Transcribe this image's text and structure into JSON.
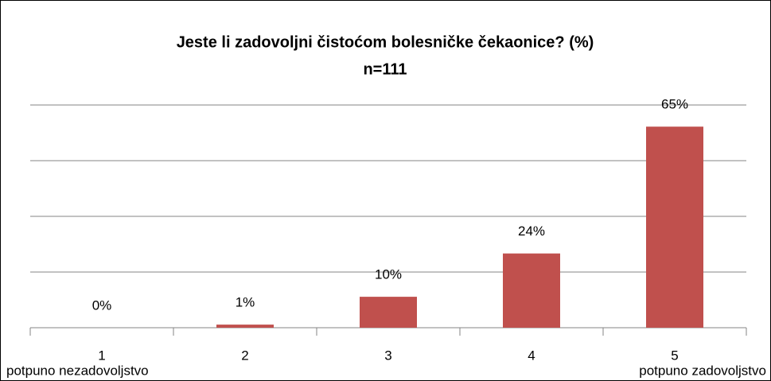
{
  "chart_data": {
    "type": "bar",
    "title": "Jeste li zadovoljni čistoćom bolesničke čekaonice? (%)",
    "subtitle": "n=111",
    "categories": [
      "1",
      "2",
      "3",
      "4",
      "5"
    ],
    "values": [
      0,
      1,
      10,
      24,
      65
    ],
    "value_labels": [
      "0%",
      "1%",
      "10%",
      "24%",
      "65%"
    ],
    "annotations": [
      "potpuno nezadovoljstvo",
      "potpuno zadovoljstvo"
    ],
    "color": "#c0504d",
    "ylim": [
      0,
      72
    ],
    "yticks": [
      0,
      18,
      36,
      54,
      72
    ],
    "grid": true
  }
}
